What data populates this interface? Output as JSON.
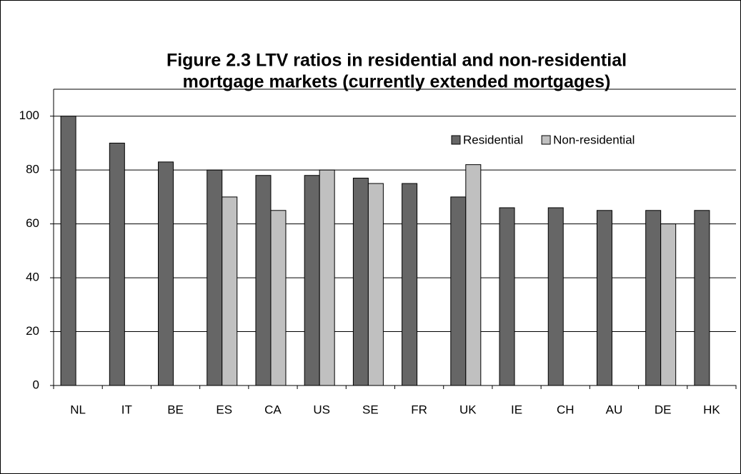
{
  "chart_data": {
    "type": "bar",
    "title": [
      "Figure 2.3 LTV ratios in residential and non-residential",
      "mortgage markets (currently extended mortgages)"
    ],
    "categories": [
      "NL",
      "IT",
      "BE",
      "ES",
      "CA",
      "US",
      "SE",
      "FR",
      "UK",
      "IE",
      "CH",
      "AU",
      "DE",
      "HK"
    ],
    "series": [
      {
        "name": "Residential",
        "color": "#666666",
        "values": [
          100,
          90,
          83,
          80,
          78,
          78,
          77,
          75,
          70,
          66,
          66,
          65,
          65,
          65
        ]
      },
      {
        "name": "Non-residential",
        "color": "#c0c0c0",
        "values": [
          null,
          null,
          null,
          70,
          65,
          80,
          75,
          null,
          82,
          null,
          null,
          null,
          60,
          null
        ]
      }
    ],
    "ylim": [
      0,
      110
    ],
    "yticks": [
      0,
      20,
      40,
      60,
      80,
      100
    ],
    "grid": true,
    "legend": "upper right"
  }
}
